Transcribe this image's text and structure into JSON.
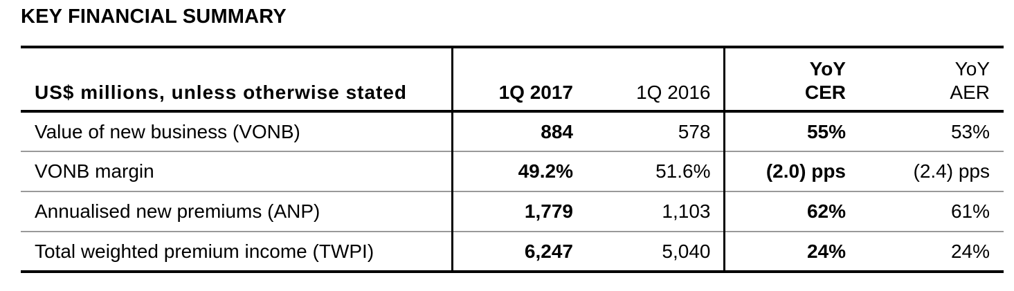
{
  "title": "KEY FINANCIAL SUMMARY",
  "table": {
    "headers": {
      "label": "US$ millions, unless otherwise stated",
      "current_period": "1Q 2017",
      "prior_period": "1Q 2016",
      "yoy_cer": [
        "YoY",
        "CER"
      ],
      "yoy_aer": [
        "YoY",
        "AER"
      ]
    },
    "rows": [
      {
        "label": "Value of new business (VONB)",
        "current": "884",
        "prior": "578",
        "yoy_cer": "55%",
        "yoy_aer": "53%"
      },
      {
        "label": "VONB margin",
        "current": "49.2%",
        "prior": "51.6%",
        "yoy_cer": "(2.0) pps",
        "yoy_aer": "(2.4) pps"
      },
      {
        "label": "Annualised new premiums (ANP)",
        "current": "1,779",
        "prior": "1,103",
        "yoy_cer": "62%",
        "yoy_aer": "61%"
      },
      {
        "label": "Total weighted premium income (TWPI)",
        "current": "6,247",
        "prior": "5,040",
        "yoy_cer": "24%",
        "yoy_aer": "24%"
      }
    ]
  }
}
